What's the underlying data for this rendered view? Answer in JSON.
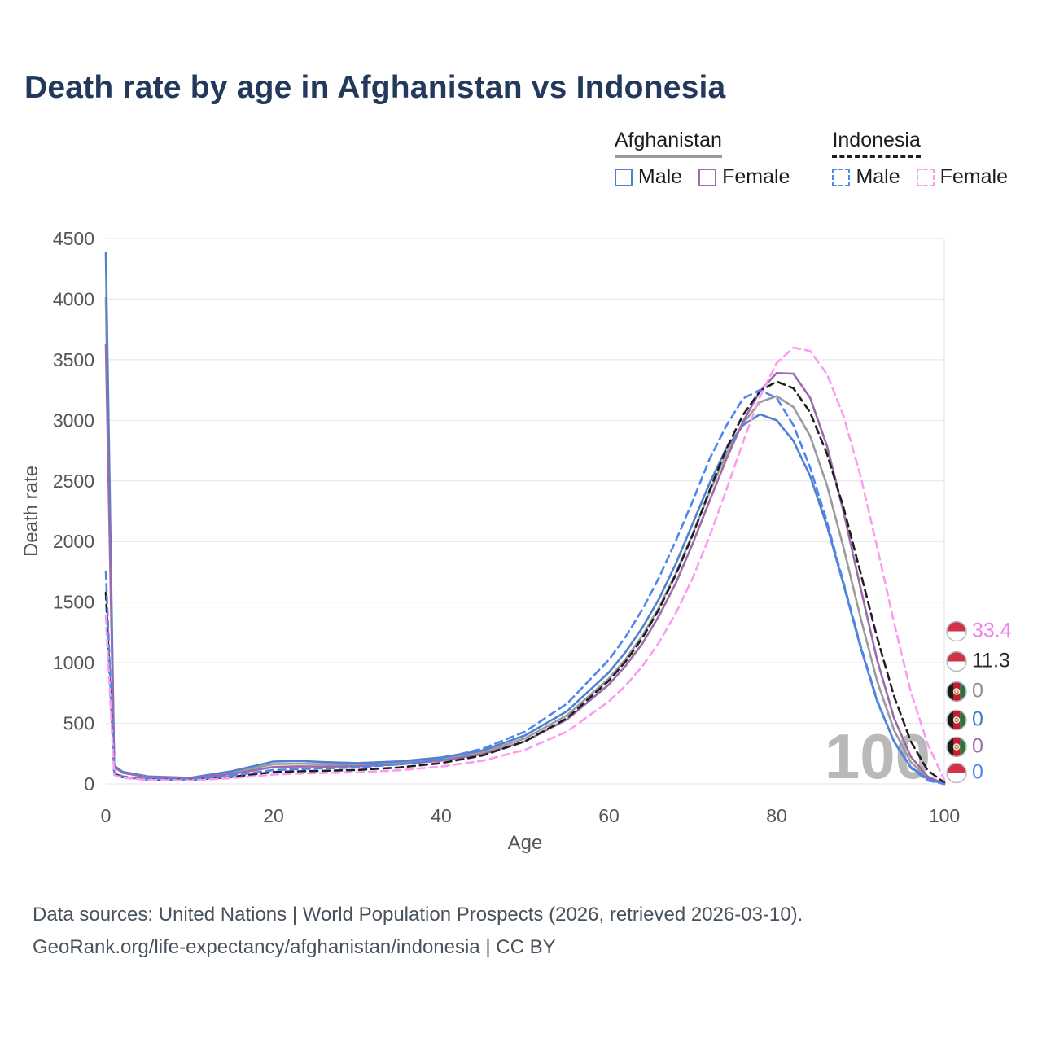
{
  "title": "Death rate by age in Afghanistan vs Indonesia",
  "watermark": "100",
  "legend": {
    "groups": [
      {
        "label": "Afghanistan",
        "style": "solid",
        "color": "#9b9b9b",
        "items": [
          {
            "label": "Male",
            "color": "#4f81cd",
            "dashed": false
          },
          {
            "label": "Female",
            "color": "#9d6bab",
            "dashed": false
          }
        ]
      },
      {
        "label": "Indonesia",
        "style": "dashed",
        "color": "#1f1f1f",
        "items": [
          {
            "label": "Male",
            "color": "#4f86ee",
            "dashed": true
          },
          {
            "label": "Female",
            "color": "#fb9cf1",
            "dashed": true
          }
        ]
      }
    ]
  },
  "chart_data": {
    "type": "line",
    "title": "Death rate by age in Afghanistan vs Indonesia",
    "xlabel": "Age",
    "ylabel": "Death rate",
    "xlim": [
      0,
      100
    ],
    "ylim": [
      0,
      4500
    ],
    "xticks": [
      0,
      20,
      40,
      60,
      80,
      100
    ],
    "yticks": [
      0,
      500,
      1000,
      1500,
      2000,
      2500,
      3000,
      3500,
      4000,
      4500
    ],
    "grid": "horizontal",
    "legend_position": "top-right",
    "x": [
      0,
      1,
      2,
      5,
      10,
      15,
      20,
      23,
      26,
      30,
      35,
      40,
      45,
      50,
      55,
      60,
      62,
      64,
      66,
      68,
      70,
      72,
      74,
      76,
      78,
      80,
      82,
      84,
      86,
      88,
      90,
      92,
      94,
      96,
      98,
      100
    ],
    "series": [
      {
        "name": "Afghanistan",
        "color": "#9b9b9b",
        "dashed": false,
        "values": [
          4010,
          145,
          96,
          59,
          47,
          94,
          163,
          168,
          162,
          159,
          174,
          205,
          262,
          376,
          566,
          870,
          1030,
          1225,
          1460,
          1740,
          2065,
          2405,
          2725,
          2975,
          3150,
          3200,
          3110,
          2870,
          2465,
          1945,
          1375,
          845,
          445,
          180,
          50,
          0
        ]
      },
      {
        "name": "Afghanistan Male",
        "color": "#4f81cd",
        "dashed": false,
        "values": [
          4380,
          150,
          100,
          62,
          50,
          105,
          185,
          190,
          180,
          172,
          186,
          218,
          278,
          400,
          600,
          920,
          1090,
          1290,
          1530,
          1820,
          2150,
          2480,
          2770,
          2960,
          3050,
          3000,
          2830,
          2540,
          2130,
          1640,
          1130,
          680,
          350,
          140,
          40,
          0
        ]
      },
      {
        "name": "Afghanistan Female",
        "color": "#9d6bab",
        "dashed": false,
        "values": [
          3620,
          140,
          92,
          56,
          44,
          82,
          140,
          145,
          143,
          146,
          162,
          192,
          246,
          352,
          532,
          820,
          975,
          1160,
          1390,
          1660,
          1985,
          2335,
          2680,
          2990,
          3240,
          3390,
          3385,
          3185,
          2790,
          2240,
          1620,
          1020,
          545,
          225,
          62,
          0
        ]
      },
      {
        "name": "Indonesia",
        "color": "#1f1f1f",
        "dashed": true,
        "values": [
          1580,
          85,
          56,
          37,
          32,
          58,
          98,
          104,
          108,
          115,
          136,
          172,
          236,
          352,
          542,
          852,
          1010,
          1205,
          1445,
          1730,
          2055,
          2420,
          2765,
          3045,
          3240,
          3320,
          3265,
          3065,
          2725,
          2275,
          1745,
          1205,
          725,
          352,
          112,
          11.3
        ]
      },
      {
        "name": "Indonesia Male",
        "color": "#4f86ee",
        "dashed": true,
        "values": [
          1750,
          95,
          62,
          40,
          34,
          68,
          115,
          122,
          128,
          136,
          162,
          208,
          292,
          432,
          662,
          1025,
          1215,
          1440,
          1705,
          2010,
          2335,
          2680,
          2955,
          3180,
          3250,
          3185,
          2960,
          2610,
          2165,
          1655,
          1145,
          690,
          348,
          132,
          28,
          0
        ]
      },
      {
        "name": "Indonesia Female",
        "color": "#fb9cf1",
        "dashed": true,
        "values": [
          1390,
          74,
          50,
          33,
          28,
          47,
          78,
          85,
          90,
          96,
          113,
          143,
          193,
          282,
          432,
          682,
          812,
          972,
          1170,
          1412,
          1700,
          2042,
          2425,
          2822,
          3192,
          3472,
          3600,
          3572,
          3382,
          3032,
          2542,
          1952,
          1332,
          762,
          332,
          33.4
        ]
      }
    ]
  },
  "end_labels": [
    {
      "series": "Indonesia Female",
      "value": "33.4",
      "flag": "indonesia",
      "color": "#f080e8"
    },
    {
      "series": "Indonesia",
      "value": "11.3",
      "flag": "indonesia",
      "color": "#2a2a2a"
    },
    {
      "series": "Afghanistan",
      "value": "0",
      "flag": "afghanistan",
      "color": "#8c8c8c"
    },
    {
      "series": "Afghanistan Male",
      "value": "0",
      "flag": "afghanistan",
      "color": "#4178d0"
    },
    {
      "series": "Afghanistan Female",
      "value": "0",
      "flag": "afghanistan",
      "color": "#9d6bab"
    },
    {
      "series": "Indonesia Male",
      "value": "0",
      "flag": "indonesia",
      "color": "#4f86ee"
    }
  ],
  "footer": {
    "line1": "Data sources: United Nations | World Population Prospects (2026, retrieved 2026-03-10).",
    "line2": "GeoRank.org/life-expectancy/afghanistan/indonesia | CC BY"
  }
}
